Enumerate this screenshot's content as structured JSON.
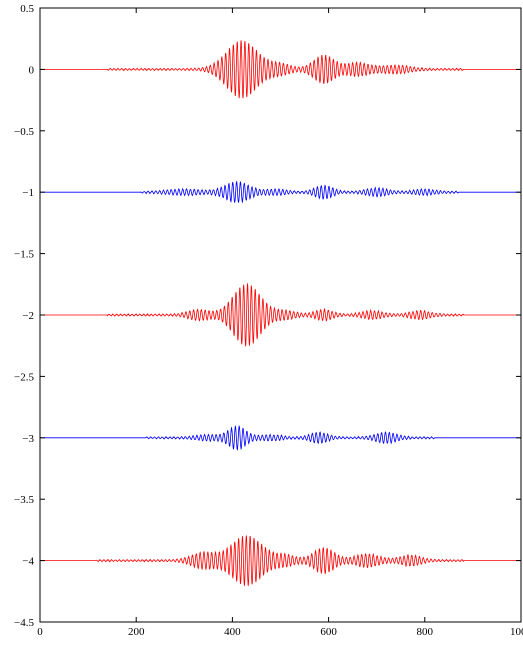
{
  "chart_data": {
    "type": "line",
    "title": "",
    "xlabel": "",
    "ylabel": "",
    "xlim": [
      0,
      1000
    ],
    "ylim": [
      -4.5,
      0.5
    ],
    "x_ticks": [
      0,
      200,
      400,
      600,
      800,
      1000
    ],
    "y_ticks": [
      0.5,
      0,
      -0.5,
      -1,
      -1.5,
      -2,
      -2.5,
      -3,
      -3.5,
      -4,
      -4.5
    ],
    "x_tick_labels": [
      "0",
      "200",
      "400",
      "600",
      "800",
      "1000"
    ],
    "y_tick_labels": [
      "0.5",
      "0",
      "−0.5",
      "−1",
      "−1.5",
      "−2",
      "−2.5",
      "−3",
      "−3.5",
      "−4",
      "−4.5"
    ],
    "grid": false,
    "legend": "none",
    "series": [
      {
        "color": "#ff0000",
        "baseline": 0,
        "x_range": [
          0,
          1000
        ],
        "signal_extent": [
          140,
          880
        ],
        "packets": [
          {
            "center": 420,
            "peak": 0.23,
            "halfwidth": 45
          },
          {
            "center": 500,
            "peak": 0.04,
            "halfwidth": 30
          },
          {
            "center": 590,
            "peak": 0.11,
            "halfwidth": 30
          },
          {
            "center": 660,
            "peak": 0.05,
            "halfwidth": 35
          },
          {
            "center": 740,
            "peak": 0.03,
            "halfwidth": 40
          }
        ]
      },
      {
        "color": "#0000ff",
        "baseline": -1,
        "x_range": [
          0,
          1000
        ],
        "signal_extent": [
          210,
          870
        ],
        "packets": [
          {
            "center": 410,
            "peak": 0.08,
            "halfwidth": 35
          },
          {
            "center": 300,
            "peak": 0.02,
            "halfwidth": 50
          },
          {
            "center": 490,
            "peak": 0.02,
            "halfwidth": 30
          },
          {
            "center": 590,
            "peak": 0.05,
            "halfwidth": 25
          },
          {
            "center": 700,
            "peak": 0.03,
            "halfwidth": 30
          },
          {
            "center": 800,
            "peak": 0.02,
            "halfwidth": 30
          }
        ]
      },
      {
        "color": "#ff0000",
        "baseline": -2,
        "x_range": [
          0,
          1000
        ],
        "signal_extent": [
          140,
          880
        ],
        "packets": [
          {
            "center": 430,
            "peak": 0.25,
            "halfwidth": 40
          },
          {
            "center": 330,
            "peak": 0.04,
            "halfwidth": 30
          },
          {
            "center": 510,
            "peak": 0.03,
            "halfwidth": 30
          },
          {
            "center": 590,
            "peak": 0.04,
            "halfwidth": 25
          },
          {
            "center": 690,
            "peak": 0.03,
            "halfwidth": 30
          },
          {
            "center": 790,
            "peak": 0.03,
            "halfwidth": 30
          }
        ]
      },
      {
        "color": "#0000ff",
        "baseline": -3,
        "x_range": [
          0,
          1000
        ],
        "signal_extent": [
          220,
          820
        ],
        "packets": [
          {
            "center": 410,
            "peak": 0.09,
            "halfwidth": 25
          },
          {
            "center": 350,
            "peak": 0.02,
            "halfwidth": 35
          },
          {
            "center": 480,
            "peak": 0.02,
            "halfwidth": 30
          },
          {
            "center": 580,
            "peak": 0.04,
            "halfwidth": 25
          },
          {
            "center": 720,
            "peak": 0.04,
            "halfwidth": 30
          }
        ]
      },
      {
        "color": "#ff0000",
        "baseline": -4,
        "x_range": [
          0,
          1000
        ],
        "signal_extent": [
          120,
          880
        ],
        "packets": [
          {
            "center": 430,
            "peak": 0.2,
            "halfwidth": 45
          },
          {
            "center": 340,
            "peak": 0.06,
            "halfwidth": 35
          },
          {
            "center": 510,
            "peak": 0.04,
            "halfwidth": 30
          },
          {
            "center": 590,
            "peak": 0.1,
            "halfwidth": 30
          },
          {
            "center": 680,
            "peak": 0.05,
            "halfwidth": 35
          },
          {
            "center": 770,
            "peak": 0.04,
            "halfwidth": 30
          }
        ]
      }
    ]
  }
}
